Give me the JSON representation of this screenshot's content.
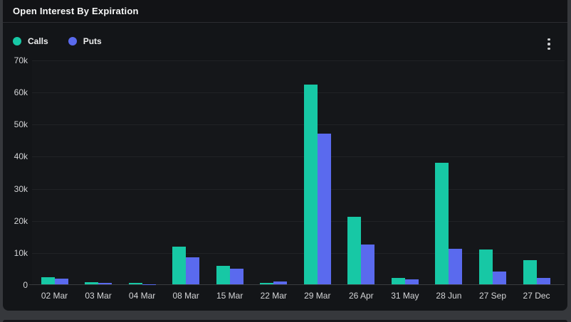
{
  "header": {
    "title": "Open Interest By Expiration"
  },
  "legend": {
    "items": [
      {
        "label": "Calls",
        "color": "#17C8A5"
      },
      {
        "label": "Puts",
        "color": "#5A6AEE"
      }
    ]
  },
  "menu": {
    "kebab_icon": "vertical-three-dots"
  },
  "colors": {
    "card_background": "#131518",
    "page_background": "#36383c",
    "calls": "#17C8A5",
    "puts": "#5A6AEE",
    "axis_text": "#d4d5d7",
    "title_text": "#f7f8f8"
  },
  "chart_data": {
    "type": "bar",
    "title": "Open Interest By Expiration",
    "xlabel": "",
    "ylabel": "",
    "ylim": [
      0,
      70000
    ],
    "grid": true,
    "legend_position": "top-left",
    "ytick_labels": [
      "70k",
      "60k",
      "50k",
      "40k",
      "30k",
      "20k",
      "10k",
      "0"
    ],
    "ytick_values": [
      70000,
      60000,
      50000,
      40000,
      30000,
      20000,
      10000,
      0
    ],
    "categories": [
      "02 Mar",
      "03 Mar",
      "04 Mar",
      "08 Mar",
      "15 Mar",
      "22 Mar",
      "29 Mar",
      "26 Apr",
      "31 May",
      "28 Jun",
      "27 Sep",
      "27 Dec"
    ],
    "series": [
      {
        "name": "Calls",
        "color": "#17C8A5",
        "values": [
          2300,
          600,
          400,
          11800,
          5800,
          400,
          62300,
          21000,
          1900,
          37900,
          10800,
          7600
        ]
      },
      {
        "name": "Puts",
        "color": "#5A6AEE",
        "values": [
          1800,
          500,
          100,
          8400,
          4800,
          800,
          47000,
          12300,
          1600,
          11000,
          4000,
          2000
        ]
      }
    ]
  }
}
